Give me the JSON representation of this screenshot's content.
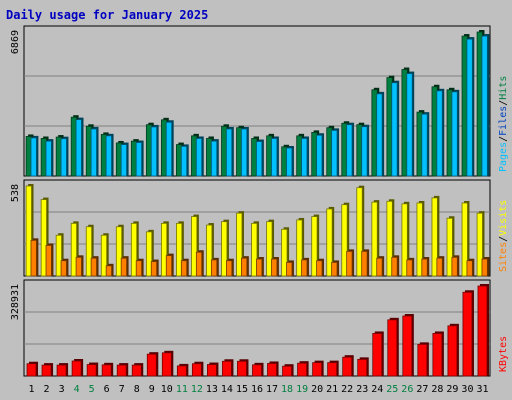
{
  "title": "Daily usage for January 2025",
  "colors": {
    "background": "#c0c0c0",
    "panel": "#c0c0c0",
    "grid": "#808080",
    "title": "#0000c0",
    "hits": "#008040",
    "pages": "#00c0ff",
    "files": "#0040c0",
    "visits": "#ffff00",
    "sites": "#ff8000",
    "kbytes": "#ff0000",
    "weekend_label": "#008040",
    "weekday_label": "#000000"
  },
  "chart_data": [
    {
      "type": "bar",
      "name": "hits-files-pages",
      "max_label": "6869",
      "legend": [
        "Pages",
        "/",
        "Files",
        "/",
        "Hits"
      ],
      "x": [
        "1",
        "2",
        "3",
        "4",
        "5",
        "6",
        "7",
        "8",
        "9",
        "10",
        "11",
        "12",
        "13",
        "14",
        "15",
        "16",
        "17",
        "18",
        "19",
        "20",
        "21",
        "22",
        "23",
        "24",
        "25",
        "26",
        "27",
        "28",
        "29",
        "30",
        "31"
      ],
      "series": [
        {
          "name": "Hits",
          "values": [
            1950,
            1850,
            1920,
            2900,
            2450,
            2050,
            1630,
            1720,
            2530,
            2770,
            1550,
            1980,
            1850,
            2450,
            2380,
            1850,
            1980,
            1440,
            1980,
            2150,
            2380,
            2600,
            2530,
            4250,
            4850,
            5250,
            3150,
            4400,
            4250,
            6900,
            7100
          ]
        },
        {
          "name": "Pages",
          "values": [
            1880,
            1720,
            1840,
            2780,
            2320,
            1980,
            1550,
            1650,
            2420,
            2650,
            1460,
            1850,
            1720,
            2320,
            2320,
            1700,
            1850,
            1380,
            1850,
            2010,
            2250,
            2530,
            2430,
            4050,
            4600,
            5050,
            3050,
            4200,
            4150,
            6750,
            6900
          ]
        }
      ]
    },
    {
      "type": "bar",
      "name": "visits-sites",
      "max_label": "538",
      "legend": [
        "Sites",
        "/",
        "Visits"
      ],
      "x": [
        "1",
        "2",
        "3",
        "4",
        "5",
        "6",
        "7",
        "8",
        "9",
        "10",
        "11",
        "12",
        "13",
        "14",
        "15",
        "16",
        "17",
        "18",
        "19",
        "20",
        "21",
        "22",
        "23",
        "24",
        "25",
        "26",
        "27",
        "28",
        "29",
        "30",
        "31"
      ],
      "series": [
        {
          "name": "Visits",
          "values": [
            530,
            450,
            240,
            310,
            290,
            240,
            290,
            310,
            260,
            310,
            310,
            350,
            300,
            320,
            370,
            310,
            320,
            275,
            330,
            350,
            395,
            420,
            520,
            435,
            440,
            425,
            430,
            460,
            340,
            430,
            370
          ]
        },
        {
          "name": "Sites",
          "values": [
            210,
            180,
            90,
            110,
            105,
            60,
            105,
            90,
            85,
            120,
            90,
            140,
            95,
            90,
            105,
            100,
            100,
            80,
            95,
            90,
            80,
            145,
            145,
            105,
            110,
            95,
            100,
            105,
            110,
            90,
            100
          ]
        }
      ]
    },
    {
      "type": "bar",
      "name": "kbytes",
      "max_label": "328931",
      "legend": [
        "KBytes"
      ],
      "x": [
        "1",
        "2",
        "3",
        "4",
        "5",
        "6",
        "7",
        "8",
        "9",
        "10",
        "11",
        "12",
        "13",
        "14",
        "15",
        "16",
        "17",
        "18",
        "19",
        "20",
        "21",
        "22",
        "23",
        "24",
        "25",
        "26",
        "27",
        "28",
        "29",
        "30",
        "31"
      ],
      "series": [
        {
          "name": "KBytes",
          "values": [
            45000,
            40000,
            40000,
            55000,
            42000,
            41000,
            40000,
            40000,
            80000,
            85000,
            37000,
            45000,
            42000,
            54000,
            54000,
            41000,
            46000,
            36000,
            47000,
            49000,
            49000,
            69000,
            61000,
            156000,
            206000,
            220000,
            116000,
            156000,
            184000,
            307000,
            330000
          ]
        }
      ]
    }
  ],
  "x_labels": [
    "1",
    "2",
    "3",
    "4",
    "5",
    "6",
    "7",
    "8",
    "9",
    "10",
    "11",
    "12",
    "13",
    "14",
    "15",
    "16",
    "17",
    "18",
    "19",
    "20",
    "21",
    "22",
    "23",
    "24",
    "25",
    "26",
    "27",
    "28",
    "29",
    "30",
    "31"
  ],
  "weekend_days": [
    4,
    5,
    11,
    12,
    18,
    19,
    25,
    26
  ]
}
